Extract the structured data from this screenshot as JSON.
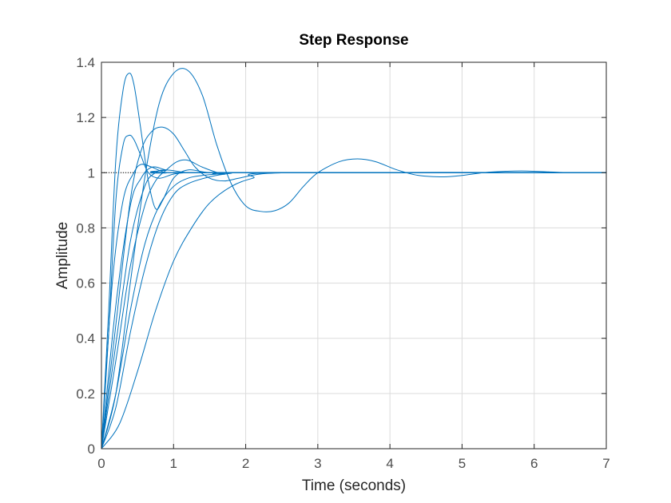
{
  "chart_data": {
    "type": "line",
    "title": "Step Response",
    "xlabel": "Time (seconds)",
    "ylabel": "Amplitude",
    "xlim": [
      0,
      7
    ],
    "ylim": [
      0,
      1.4
    ],
    "xticks": [
      0,
      1,
      2,
      3,
      4,
      5,
      6,
      7
    ],
    "yticks": [
      0,
      0.2,
      0.4,
      0.6,
      0.8,
      1,
      1.2,
      1.4
    ],
    "xtick_labels": [
      "0",
      "1",
      "2",
      "3",
      "4",
      "5",
      "6",
      "7"
    ],
    "ytick_labels": [
      "0",
      "0.2",
      "0.4",
      "0.6",
      "0.8",
      "1",
      "1.2",
      "1.4"
    ],
    "grid": true,
    "line_color": "#0072bd",
    "reference_value": 1,
    "reference_x_end": 0.5,
    "series": [
      {
        "x": [
          0,
          0.1,
          0.2,
          0.3,
          0.38,
          0.45,
          0.55,
          0.65,
          0.75,
          0.85,
          1.0,
          1.2,
          1.5,
          2.0,
          7.0
        ],
        "y": [
          0,
          0.5,
          1.05,
          1.3,
          1.36,
          1.32,
          1.15,
          0.97,
          0.87,
          0.9,
          0.98,
          1.01,
          1.0,
          1.0,
          1.0
        ]
      },
      {
        "x": [
          0,
          0.1,
          0.2,
          0.3,
          0.38,
          0.45,
          0.55,
          0.65,
          0.8,
          1.0,
          1.2,
          1.5,
          7.0
        ],
        "y": [
          0,
          0.42,
          0.9,
          1.1,
          1.135,
          1.12,
          1.06,
          1.0,
          0.98,
          0.995,
          1.0,
          1.0,
          1.0
        ]
      },
      {
        "x": [
          0,
          0.15,
          0.3,
          0.45,
          0.55,
          0.7,
          0.9,
          1.2,
          7.0
        ],
        "y": [
          0,
          0.6,
          0.9,
          1.0,
          1.03,
          1.02,
          1.0,
          1.0,
          1.0
        ]
      },
      {
        "x": [
          0,
          0.2,
          0.4,
          0.55,
          0.7,
          0.9,
          1.2,
          7.0
        ],
        "y": [
          0,
          0.52,
          0.88,
          0.98,
          1.02,
          1.01,
          1.0,
          1.0
        ]
      },
      {
        "x": [
          0,
          0.2,
          0.4,
          0.6,
          0.75,
          0.9,
          1.2,
          1.5,
          7.0
        ],
        "y": [
          0,
          0.38,
          0.75,
          0.95,
          1.0,
          1.01,
          1.0,
          1.0,
          1.0
        ]
      },
      {
        "x": [
          0,
          0.2,
          0.4,
          0.6,
          0.75,
          0.9,
          1.05,
          1.2,
          1.4,
          1.7,
          2.0,
          7.0
        ],
        "y": [
          0,
          0.32,
          0.66,
          0.88,
          0.97,
          1.01,
          1.04,
          1.045,
          1.02,
          0.995,
          1.0,
          1.0
        ]
      },
      {
        "x": [
          0,
          0.2,
          0.4,
          0.55,
          0.7,
          0.85,
          1.0,
          1.15,
          1.3,
          1.5,
          1.7,
          1.9,
          2.2,
          2.6,
          3.0,
          7.0
        ],
        "y": [
          0,
          0.45,
          0.9,
          1.08,
          1.15,
          1.165,
          1.14,
          1.08,
          1.02,
          0.98,
          0.97,
          0.98,
          0.995,
          1.0,
          1.0,
          1.0
        ]
      },
      {
        "x": [
          0,
          0.2,
          0.4,
          0.6,
          0.8,
          1.0,
          1.2,
          1.4,
          1.6,
          1.8,
          2.0,
          7.0
        ],
        "y": [
          0,
          0.2,
          0.5,
          0.74,
          0.88,
          0.95,
          0.98,
          0.99,
          0.995,
          1.0,
          1.0,
          1.0
        ]
      },
      {
        "x": [
          0,
          0.2,
          0.4,
          0.6,
          0.8,
          1.0,
          1.2,
          1.5,
          1.8,
          2.0,
          7.0
        ],
        "y": [
          0,
          0.15,
          0.42,
          0.65,
          0.82,
          0.92,
          0.96,
          0.985,
          0.998,
          1.0,
          1.0
        ]
      },
      {
        "x": [
          0,
          0.25,
          0.5,
          0.75,
          1.0,
          1.25,
          1.5,
          1.8,
          2.1,
          2.5,
          7.0
        ],
        "y": [
          0,
          0.09,
          0.28,
          0.5,
          0.68,
          0.8,
          0.89,
          0.95,
          0.98,
          1.0,
          1.0
        ]
      },
      {
        "x": [
          0,
          0.2,
          0.4,
          0.6,
          0.8,
          1.0,
          1.2,
          1.4,
          1.6,
          1.8,
          2.0,
          2.2,
          2.4,
          2.6,
          2.8,
          3.0,
          3.3,
          3.55,
          3.8,
          4.1,
          4.4,
          4.75,
          5.0,
          5.3,
          5.6,
          5.9,
          6.2,
          6.5,
          7.0
        ],
        "y": [
          0,
          0.2,
          0.6,
          0.98,
          1.25,
          1.36,
          1.37,
          1.28,
          1.1,
          0.96,
          0.88,
          0.86,
          0.862,
          0.89,
          0.95,
          1.0,
          1.04,
          1.05,
          1.04,
          1.01,
          0.99,
          0.985,
          0.99,
          1.0,
          1.005,
          1.006,
          1.003,
          1.0,
          1.0
        ]
      }
    ]
  }
}
